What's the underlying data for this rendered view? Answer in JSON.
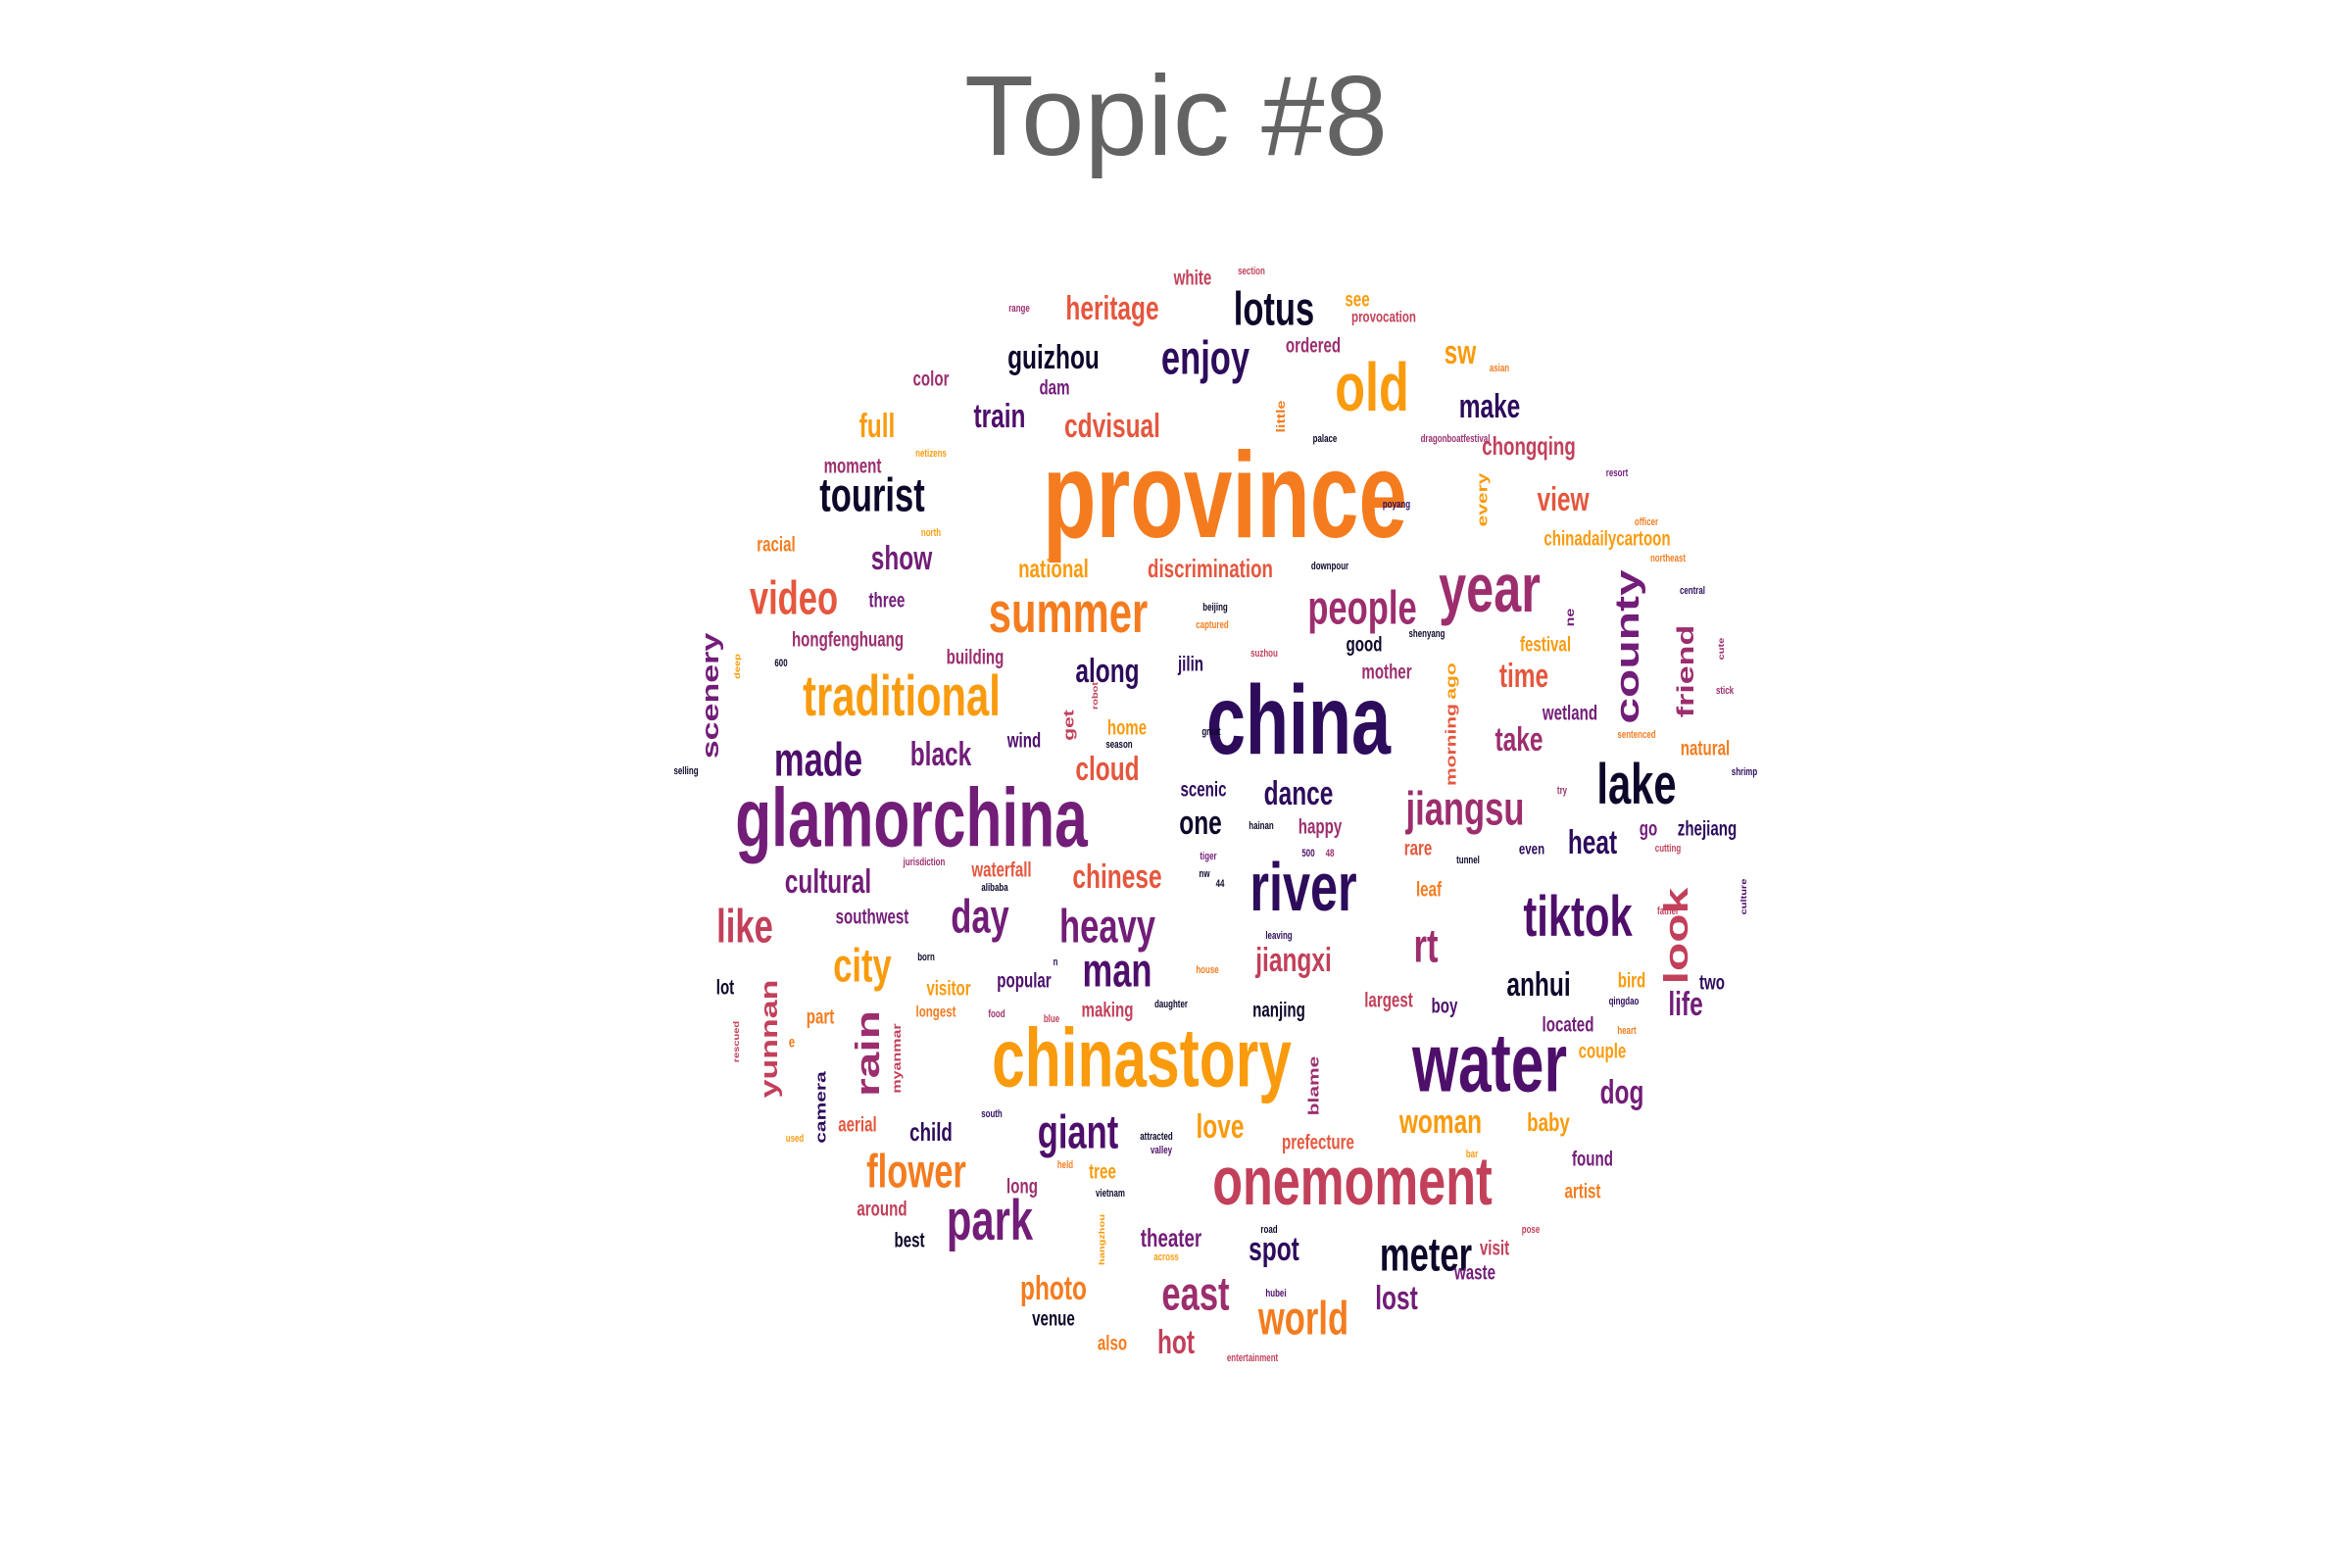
{
  "title": "Topic #8",
  "palette": [
    "#0d0829",
    "#2d0c5b",
    "#4e0f6b",
    "#721d78",
    "#9c2e6e",
    "#c2405a",
    "#e4573e",
    "#f47c1f",
    "#f99b0d"
  ],
  "words": [
    {
      "text": "province",
      "color": "#f47c1f",
      "size": 10,
      "rot": 0
    },
    {
      "text": "china",
      "color": "#2d0c5b",
      "size": 9,
      "rot": 0
    },
    {
      "text": "chinastory",
      "color": "#f99b0d",
      "size": 8,
      "rot": 0
    },
    {
      "text": "glamorchina",
      "color": "#721d78",
      "size": 8,
      "rot": 0
    },
    {
      "text": "water",
      "color": "#4e0f6b",
      "size": 8,
      "rot": 0
    },
    {
      "text": "year",
      "color": "#9c2e6e",
      "size": 7,
      "rot": 0
    },
    {
      "text": "onemoment",
      "color": "#c2405a",
      "size": 7,
      "rot": 0
    },
    {
      "text": "river",
      "color": "#2d0c5b",
      "size": 7,
      "rot": 0
    },
    {
      "text": "old",
      "color": "#f99b0d",
      "size": 7,
      "rot": 0
    },
    {
      "text": "summer",
      "color": "#f47c1f",
      "size": 6,
      "rot": 0
    },
    {
      "text": "park",
      "color": "#721d78",
      "size": 6,
      "rot": 0
    },
    {
      "text": "traditional",
      "color": "#f99b0d",
      "size": 6,
      "rot": 0
    },
    {
      "text": "tiktok",
      "color": "#4e0f6b",
      "size": 6,
      "rot": 0
    },
    {
      "text": "lake",
      "color": "#0d0829",
      "size": 6,
      "rot": 0
    },
    {
      "text": "enjoy",
      "color": "#2d0c5b",
      "size": 5,
      "rot": 0
    },
    {
      "text": "heavy",
      "color": "#721d78",
      "size": 5,
      "rot": 0
    },
    {
      "text": "day",
      "color": "#721d78",
      "size": 5,
      "rot": 0
    },
    {
      "text": "like",
      "color": "#c2405a",
      "size": 5,
      "rot": 0
    },
    {
      "text": "people",
      "color": "#9c2e6e",
      "size": 5,
      "rot": 0
    },
    {
      "text": "jiangsu",
      "color": "#9c2e6e",
      "size": 5,
      "rot": 0
    },
    {
      "text": "county",
      "color": "#721d78",
      "size": 5,
      "rot": 270
    },
    {
      "text": "look",
      "color": "#c2405a",
      "size": 5,
      "rot": 270
    },
    {
      "text": "rain",
      "color": "#9c2e6e",
      "size": 5,
      "rot": 270
    },
    {
      "text": "lotus",
      "color": "#0d0829",
      "size": 5,
      "rot": 0
    },
    {
      "text": "tourist",
      "color": "#0d0829",
      "size": 5,
      "rot": 0
    },
    {
      "text": "video",
      "color": "#e4573e",
      "size": 5,
      "rot": 0
    },
    {
      "text": "made",
      "color": "#4e0f6b",
      "size": 5,
      "rot": 0
    },
    {
      "text": "flower",
      "color": "#f47c1f",
      "size": 5,
      "rot": 0
    },
    {
      "text": "world",
      "color": "#f47c1f",
      "size": 5,
      "rot": 0
    },
    {
      "text": "east",
      "color": "#9c2e6e",
      "size": 5,
      "rot": 0
    },
    {
      "text": "meter",
      "color": "#0d0829",
      "size": 5,
      "rot": 0
    },
    {
      "text": "giant",
      "color": "#4e0f6b",
      "size": 5,
      "rot": 0
    },
    {
      "text": "man",
      "color": "#4e0f6b",
      "size": 5,
      "rot": 0
    },
    {
      "text": "city",
      "color": "#f99b0d",
      "size": 5,
      "rot": 0
    },
    {
      "text": "rt",
      "color": "#9c2e6e",
      "size": 5,
      "rot": 0
    },
    {
      "text": "take",
      "color": "#9c2e6e",
      "size": 4,
      "rot": 0
    },
    {
      "text": "time",
      "color": "#e4573e",
      "size": 4,
      "rot": 0
    },
    {
      "text": "view",
      "color": "#e4573e",
      "size": 4,
      "rot": 0
    },
    {
      "text": "train",
      "color": "#4e0f6b",
      "size": 4,
      "rot": 0
    },
    {
      "text": "one",
      "color": "#0d0829",
      "size": 4,
      "rot": 0
    },
    {
      "text": "anhui",
      "color": "#0d0829",
      "size": 4,
      "rot": 0
    },
    {
      "text": "jiangxi",
      "color": "#c2405a",
      "size": 4,
      "rot": 0
    },
    {
      "text": "dog",
      "color": "#721d78",
      "size": 4,
      "rot": 0
    },
    {
      "text": "heat",
      "color": "#2d0c5b",
      "size": 4,
      "rot": 0
    },
    {
      "text": "friend",
      "color": "#9c2e6e",
      "size": 4,
      "rot": 270
    },
    {
      "text": "life",
      "color": "#721d78",
      "size": 4,
      "rot": 0
    },
    {
      "text": "make",
      "color": "#2d0c5b",
      "size": 4,
      "rot": 0
    },
    {
      "text": "guizhou",
      "color": "#0d0829",
      "size": 4,
      "rot": 0
    },
    {
      "text": "woman",
      "color": "#f99b0d",
      "size": 4,
      "rot": 0
    },
    {
      "text": "love",
      "color": "#f99b0d",
      "size": 4,
      "rot": 0
    },
    {
      "text": "full",
      "color": "#f99b0d",
      "size": 4,
      "rot": 0
    },
    {
      "text": "photo",
      "color": "#f47c1f",
      "size": 4,
      "rot": 0
    },
    {
      "text": "cultural",
      "color": "#721d78",
      "size": 4,
      "rot": 0
    },
    {
      "text": "show",
      "color": "#721d78",
      "size": 4,
      "rot": 0
    },
    {
      "text": "along",
      "color": "#2d0c5b",
      "size": 4,
      "rot": 0
    },
    {
      "text": "dance",
      "color": "#2d0c5b",
      "size": 4,
      "rot": 0
    },
    {
      "text": "spot",
      "color": "#2d0c5b",
      "size": 4,
      "rot": 0
    },
    {
      "text": "black",
      "color": "#721d78",
      "size": 4,
      "rot": 0
    },
    {
      "text": "chinese",
      "color": "#e4573e",
      "size": 4,
      "rot": 0
    },
    {
      "text": "yunnan",
      "color": "#c2405a",
      "size": 4,
      "rot": 270
    },
    {
      "text": "scenery",
      "color": "#721d78",
      "size": 4,
      "rot": 270
    },
    {
      "text": "cdvisual",
      "color": "#e4573e",
      "size": 4,
      "rot": 0
    },
    {
      "text": "heritage",
      "color": "#e4573e",
      "size": 4,
      "rot": 0
    },
    {
      "text": "cloud",
      "color": "#e4573e",
      "size": 4,
      "rot": 0
    },
    {
      "text": "lost",
      "color": "#721d78",
      "size": 4,
      "rot": 0
    },
    {
      "text": "hot",
      "color": "#c2405a",
      "size": 4,
      "rot": 0
    },
    {
      "text": "baby",
      "color": "#f99b0d",
      "size": 3,
      "rot": 0
    },
    {
      "text": "sw",
      "color": "#f99b0d",
      "size": 4,
      "rot": 0
    },
    {
      "text": "child",
      "color": "#2d0c5b",
      "size": 3,
      "rot": 0
    },
    {
      "text": "theater",
      "color": "#721d78",
      "size": 3,
      "rot": 0
    },
    {
      "text": "chongqing",
      "color": "#c2405a",
      "size": 3,
      "rot": 0
    },
    {
      "text": "national",
      "color": "#f99b0d",
      "size": 3,
      "rot": 0
    },
    {
      "text": "discrimination",
      "color": "#e4573e",
      "size": 3,
      "rot": 0
    },
    {
      "text": "southwest",
      "color": "#721d78",
      "size": 2,
      "rot": 0
    },
    {
      "text": "hongfenghuang",
      "color": "#9c2e6e",
      "size": 2,
      "rot": 0
    },
    {
      "text": "building",
      "color": "#9c2e6e",
      "size": 2,
      "rot": 0
    },
    {
      "text": "three",
      "color": "#721d78",
      "size": 2,
      "rot": 0
    },
    {
      "text": "jilin",
      "color": "#2d0c5b",
      "size": 2,
      "rot": 0
    },
    {
      "text": "mother",
      "color": "#9c2e6e",
      "size": 2,
      "rot": 0
    },
    {
      "text": "good",
      "color": "#0d0829",
      "size": 2,
      "rot": 0
    },
    {
      "text": "festival",
      "color": "#f99b0d",
      "size": 2,
      "rot": 0
    },
    {
      "text": "morning",
      "color": "#e4573e",
      "size": 2,
      "rot": 270
    },
    {
      "text": "ago",
      "color": "#f99b0d",
      "size": 2,
      "rot": 270
    },
    {
      "text": "wind",
      "color": "#4e0f6b",
      "size": 2,
      "rot": 0
    },
    {
      "text": "home",
      "color": "#f99b0d",
      "size": 2,
      "rot": 0
    },
    {
      "text": "scenic",
      "color": "#2d0c5b",
      "size": 2,
      "rot": 0
    },
    {
      "text": "happy",
      "color": "#9c2e6e",
      "size": 2,
      "rot": 0
    },
    {
      "text": "rare",
      "color": "#e4573e",
      "size": 2,
      "rot": 0
    },
    {
      "text": "leaf",
      "color": "#f47c1f",
      "size": 2,
      "rot": 0
    },
    {
      "text": "waterfall",
      "color": "#e4573e",
      "size": 2,
      "rot": 0
    },
    {
      "text": "popular",
      "color": "#4e0f6b",
      "size": 2,
      "rot": 0
    },
    {
      "text": "visitor",
      "color": "#f99b0d",
      "size": 2,
      "rot": 0
    },
    {
      "text": "making",
      "color": "#c2405a",
      "size": 2,
      "rot": 0
    },
    {
      "text": "largest",
      "color": "#c2405a",
      "size": 2,
      "rot": 0
    },
    {
      "text": "boy",
      "color": "#4e0f6b",
      "size": 2,
      "rot": 0
    },
    {
      "text": "nanjing",
      "color": "#0d0829",
      "size": 2,
      "rot": 0
    },
    {
      "text": "located",
      "color": "#721d78",
      "size": 2,
      "rot": 0
    },
    {
      "text": "couple",
      "color": "#f99b0d",
      "size": 2,
      "rot": 0
    },
    {
      "text": "bird",
      "color": "#f99b0d",
      "size": 2,
      "rot": 0
    },
    {
      "text": "two",
      "color": "#2d0c5b",
      "size": 2,
      "rot": 0
    },
    {
      "text": "zhejiang",
      "color": "#2d0c5b",
      "size": 2,
      "rot": 0
    },
    {
      "text": "part",
      "color": "#f47c1f",
      "size": 2,
      "rot": 0
    },
    {
      "text": "camera",
      "color": "#2d0c5b",
      "size": 2,
      "rot": 270
    },
    {
      "text": "aerial",
      "color": "#e4573e",
      "size": 2,
      "rot": 0
    },
    {
      "text": "around",
      "color": "#c2405a",
      "size": 2,
      "rot": 0
    },
    {
      "text": "best",
      "color": "#0d0829",
      "size": 2,
      "rot": 0
    },
    {
      "text": "long",
      "color": "#9c2e6e",
      "size": 2,
      "rot": 0
    },
    {
      "text": "tree",
      "color": "#f99b0d",
      "size": 2,
      "rot": 0
    },
    {
      "text": "prefecture",
      "color": "#e4573e",
      "size": 2,
      "rot": 0
    },
    {
      "text": "blame",
      "color": "#9c2e6e",
      "size": 2,
      "rot": 270
    },
    {
      "text": "venue",
      "color": "#0d0829",
      "size": 2,
      "rot": 0
    },
    {
      "text": "also",
      "color": "#f47c1f",
      "size": 2,
      "rot": 0
    },
    {
      "text": "visit",
      "color": "#c2405a",
      "size": 2,
      "rot": 0
    },
    {
      "text": "waste",
      "color": "#721d78",
      "size": 2,
      "rot": 0
    },
    {
      "text": "found",
      "color": "#721d78",
      "size": 2,
      "rot": 0
    },
    {
      "text": "artist",
      "color": "#f47c1f",
      "size": 2,
      "rot": 0
    },
    {
      "text": "natural",
      "color": "#f47c1f",
      "size": 2,
      "rot": 0
    },
    {
      "text": "wetland",
      "color": "#721d78",
      "size": 2,
      "rot": 0
    },
    {
      "text": "chinadailycartoon",
      "color": "#f99b0d",
      "size": 2,
      "rot": 0
    },
    {
      "text": "racial",
      "color": "#f47c1f",
      "size": 2,
      "rot": 0
    },
    {
      "text": "moment",
      "color": "#9c2e6e",
      "size": 2,
      "rot": 0
    },
    {
      "text": "color",
      "color": "#9c2e6e",
      "size": 2,
      "rot": 0
    },
    {
      "text": "dam",
      "color": "#721d78",
      "size": 2,
      "rot": 0
    },
    {
      "text": "white",
      "color": "#c2405a",
      "size": 2,
      "rot": 0
    },
    {
      "text": "ordered",
      "color": "#9c2e6e",
      "size": 2,
      "rot": 0
    },
    {
      "text": "see",
      "color": "#f99b0d",
      "size": 2,
      "rot": 0
    },
    {
      "text": "every",
      "color": "#f99b0d",
      "size": 2,
      "rot": 270
    },
    {
      "text": "even",
      "color": "#2d0c5b",
      "size": 1,
      "rot": 0
    },
    {
      "text": "go",
      "color": "#721d78",
      "size": 2,
      "rot": 0
    },
    {
      "text": "little",
      "color": "#f47c1f",
      "size": 1,
      "rot": 270
    },
    {
      "text": "get",
      "color": "#c2405a",
      "size": 2,
      "rot": 270
    },
    {
      "text": "lot",
      "color": "#0d0829",
      "size": 2,
      "rot": 0
    },
    {
      "text": "e",
      "color": "#f47c1f",
      "size": 1,
      "rot": 0
    },
    {
      "text": "ne",
      "color": "#721d78",
      "size": 1,
      "rot": 270
    },
    {
      "text": "provocation",
      "color": "#c2405a",
      "size": 1,
      "rot": 0
    },
    {
      "text": "longest",
      "color": "#f47c1f",
      "size": 1,
      "rot": 0
    },
    {
      "text": "myanmar",
      "color": "#c2405a",
      "size": 1,
      "rot": 270
    },
    {
      "text": "downpour",
      "color": "#0d0829",
      "size": 0,
      "rot": 0
    },
    {
      "text": "dragonboatfestival",
      "color": "#9c2e6e",
      "size": 0,
      "rot": 0
    },
    {
      "text": "palace",
      "color": "#0d0829",
      "size": 0,
      "rot": 0
    },
    {
      "text": "poyang",
      "color": "#2d0c5b",
      "size": 0,
      "rot": 0
    },
    {
      "text": "netizens",
      "color": "#f99b0d",
      "size": 0,
      "rot": 0
    },
    {
      "text": "north",
      "color": "#f99b0d",
      "size": 0,
      "rot": 0
    },
    {
      "text": "range",
      "color": "#9c2e6e",
      "size": 0,
      "rot": 0
    },
    {
      "text": "section",
      "color": "#c2405a",
      "size": 0,
      "rot": 0
    },
    {
      "text": "asian",
      "color": "#f47c1f",
      "size": 0,
      "rot": 0
    },
    {
      "text": "resort",
      "color": "#721d78",
      "size": 0,
      "rot": 0
    },
    {
      "text": "officer",
      "color": "#f47c1f",
      "size": 0,
      "rot": 0
    },
    {
      "text": "northeast",
      "color": "#f47c1f",
      "size": 0,
      "rot": 0
    },
    {
      "text": "central",
      "color": "#2d0c5b",
      "size": 0,
      "rot": 0
    },
    {
      "text": "beijing",
      "color": "#0d0829",
      "size": 0,
      "rot": 0
    },
    {
      "text": "captured",
      "color": "#f47c1f",
      "size": 0,
      "rot": 0
    },
    {
      "text": "shenyang",
      "color": "#0d0829",
      "size": 0,
      "rot": 0
    },
    {
      "text": "suzhou",
      "color": "#c2405a",
      "size": 0,
      "rot": 0
    },
    {
      "text": "cute",
      "color": "#9c2e6e",
      "size": 0,
      "rot": 270
    },
    {
      "text": "stick",
      "color": "#9c2e6e",
      "size": 0,
      "rot": 0
    },
    {
      "text": "600",
      "color": "#0d0829",
      "size": 0,
      "rot": 0
    },
    {
      "text": "deep",
      "color": "#f99b0d",
      "size": 0,
      "rot": 270
    },
    {
      "text": "robot",
      "color": "#c2405a",
      "size": 0,
      "rot": 270
    },
    {
      "text": "great",
      "color": "#0d0829",
      "size": 0,
      "rot": 0
    },
    {
      "text": "season",
      "color": "#0d0829",
      "size": 0,
      "rot": 0
    },
    {
      "text": "sentenced",
      "color": "#f47c1f",
      "size": 0,
      "rot": 0
    },
    {
      "text": "shrimp",
      "color": "#2d0c5b",
      "size": 0,
      "rot": 0
    },
    {
      "text": "try",
      "color": "#9c2e6e",
      "size": 0,
      "rot": 0
    },
    {
      "text": "selling",
      "color": "#0d0829",
      "size": 0,
      "rot": 0
    },
    {
      "text": "hainan",
      "color": "#0d0829",
      "size": 0,
      "rot": 0
    },
    {
      "text": "tunnel",
      "color": "#0d0829",
      "size": 0,
      "rot": 0
    },
    {
      "text": "cutting",
      "color": "#c2405a",
      "size": 0,
      "rot": 0
    },
    {
      "text": "jurisdiction",
      "color": "#9c2e6e",
      "size": 0,
      "rot": 0
    },
    {
      "text": "alibaba",
      "color": "#0d0829",
      "size": 0,
      "rot": 0
    },
    {
      "text": "tiger",
      "color": "#721d78",
      "size": 0,
      "rot": 0
    },
    {
      "text": "nw",
      "color": "#0d0829",
      "size": 0,
      "rot": 0
    },
    {
      "text": "500",
      "color": "#4e0f6b",
      "size": 0,
      "rot": 0
    },
    {
      "text": "48",
      "color": "#9c2e6e",
      "size": 0,
      "rot": 0
    },
    {
      "text": "44",
      "color": "#0d0829",
      "size": 0,
      "rot": 0
    },
    {
      "text": "leaving",
      "color": "#2d0c5b",
      "size": 0,
      "rot": 0
    },
    {
      "text": "father",
      "color": "#c2405a",
      "size": 0,
      "rot": 0
    },
    {
      "text": "culture",
      "color": "#4e0f6b",
      "size": 0,
      "rot": 270
    },
    {
      "text": "born",
      "color": "#0d0829",
      "size": 0,
      "rot": 0
    },
    {
      "text": "n",
      "color": "#2d0c5b",
      "size": 0,
      "rot": 0
    },
    {
      "text": "house",
      "color": "#f47c1f",
      "size": 0,
      "rot": 0
    },
    {
      "text": "qingdao",
      "color": "#2d0c5b",
      "size": 0,
      "rot": 0
    },
    {
      "text": "food",
      "color": "#9c2e6e",
      "size": 0,
      "rot": 0
    },
    {
      "text": "blue",
      "color": "#c2405a",
      "size": 0,
      "rot": 0
    },
    {
      "text": "daughter",
      "color": "#0d0829",
      "size": 0,
      "rot": 0
    },
    {
      "text": "heart",
      "color": "#f47c1f",
      "size": 0,
      "rot": 0
    },
    {
      "text": "rescued",
      "color": "#c2405a",
      "size": 0,
      "rot": 270
    },
    {
      "text": "used",
      "color": "#f99b0d",
      "size": 0,
      "rot": 0
    },
    {
      "text": "south",
      "color": "#2d0c5b",
      "size": 0,
      "rot": 0
    },
    {
      "text": "attracted",
      "color": "#0d0829",
      "size": 0,
      "rot": 0
    },
    {
      "text": "valley",
      "color": "#4e0f6b",
      "size": 0,
      "rot": 0
    },
    {
      "text": "held",
      "color": "#f47c1f",
      "size": 0,
      "rot": 0
    },
    {
      "text": "vietnam",
      "color": "#0d0829",
      "size": 0,
      "rot": 0
    },
    {
      "text": "hangzhou",
      "color": "#f99b0d",
      "size": 0,
      "rot": 270
    },
    {
      "text": "across",
      "color": "#f99b0d",
      "size": 0,
      "rot": 0
    },
    {
      "text": "road",
      "color": "#0d0829",
      "size": 0,
      "rot": 0
    },
    {
      "text": "hubei",
      "color": "#4e0f6b",
      "size": 0,
      "rot": 0
    },
    {
      "text": "entertainment",
      "color": "#c2405a",
      "size": 0,
      "rot": 0
    },
    {
      "text": "bar",
      "color": "#f99b0d",
      "size": 0,
      "rot": 0
    },
    {
      "text": "pose",
      "color": "#c2405a",
      "size": 0,
      "rot": 0
    }
  ]
}
